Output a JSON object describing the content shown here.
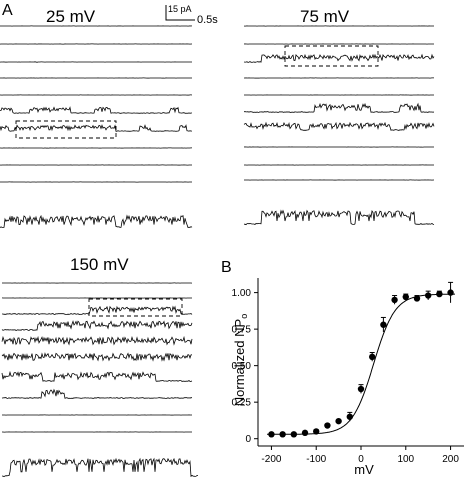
{
  "panels": {
    "A": {
      "letter": "A",
      "conditions": [
        "25 mV",
        "75 mV",
        "150 mV"
      ],
      "scalebar": {
        "current": "15 pA",
        "time": "0.5s"
      }
    },
    "B": {
      "letter": "B"
    }
  },
  "chart_data": {
    "type": "scatter",
    "title": "",
    "xlabel": "mV",
    "ylabel": "Normalized NP",
    "ylabel_subscript": "o",
    "xlim": [
      -230,
      230
    ],
    "ylim": [
      -0.05,
      1.1
    ],
    "xticks": [
      -200,
      -100,
      0,
      100,
      200
    ],
    "yticks": [
      0,
      0.25,
      0.5,
      0.75,
      1.0
    ],
    "xtick_labels": [
      "-200",
      "-100",
      "0",
      "100",
      "200"
    ],
    "ytick_labels": [
      "0",
      "0.25",
      "0.50",
      "0.75",
      "1.00"
    ],
    "grid": false,
    "series": [
      {
        "x": [
          -200,
          -175,
          -150,
          -125,
          -100,
          -75,
          -50,
          -25,
          0,
          25,
          50,
          75,
          100,
          125,
          150,
          175,
          200
        ],
        "y": [
          0.03,
          0.03,
          0.03,
          0.04,
          0.05,
          0.09,
          0.12,
          0.15,
          0.34,
          0.56,
          0.78,
          0.95,
          0.97,
          0.96,
          0.98,
          0.99,
          1.0
        ],
        "err": [
          0,
          0,
          0,
          0,
          0,
          0.01,
          0,
          0.03,
          0.03,
          0.03,
          0.05,
          0.03,
          0.02,
          0.02,
          0.03,
          0.02,
          0.07
        ]
      }
    ],
    "fit": {
      "type": "boltzmann",
      "v_half": 28,
      "slope": 24,
      "baseline": 0.03,
      "top": 0.99
    }
  }
}
